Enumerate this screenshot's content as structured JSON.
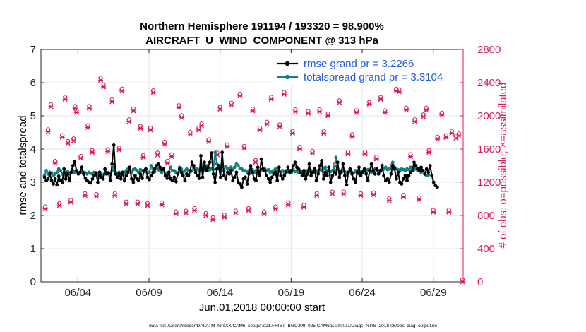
{
  "chart_data": {
    "type": "line",
    "title_line1": "Northern Hemisphere 191194 / 193320 = 98.900%",
    "title_line2": "AIRCRAFT_U_WIND_COMPONENT @ 313 hPa",
    "xlabel": "Jun.01,2018 00:00:00 start",
    "ylabel_left": "rmse and totalspread",
    "ylabel_right": "# of obs: o=possible; ×=assimilated",
    "footnote": "data file: /Users/raeder/DAI/ATM_forcXX/CAM6_setup/f.e21.FHIST_BGC.f09_025.CAM6assim.011/Diags_NTrS_2018-06/obs_diag_output.nc",
    "xlim": [
      1.4,
      31.1
    ],
    "ylim_left": [
      0,
      7
    ],
    "ylim_right": [
      0,
      2800
    ],
    "x_ticks": [
      4,
      9,
      14,
      19,
      24,
      29
    ],
    "x_tick_labels": [
      "06/04",
      "06/09",
      "06/14",
      "06/19",
      "06/24",
      "06/29"
    ],
    "y_ticks_left": [
      "0",
      "1",
      "2",
      "3",
      "4",
      "5",
      "6",
      "7"
    ],
    "y_ticks_right": [
      "0",
      "400",
      "800",
      "1200",
      "1600",
      "2000",
      "2400",
      "2800"
    ],
    "grid": true,
    "legend_position": "top-right",
    "colors": {
      "rmse": "#000000",
      "spread": "#0e8080",
      "obs": "#d81b60",
      "legend_text": "#1f5cd6"
    },
    "series": [
      {
        "name": "rmse grand pr = 3.2266",
        "values": [
          3.15,
          3.05,
          3.1,
          3.25,
          3.05,
          2.95,
          3.1,
          2.92,
          3.18,
          3.05,
          3.0,
          3.4,
          3.1,
          3.25,
          3.05,
          3.3,
          3.5,
          3.62,
          3.35,
          3.25,
          3.3,
          3.45,
          3.25,
          3.12,
          3.05,
          3.0,
          2.98,
          3.1,
          3.2,
          3.28,
          3.0,
          3.3,
          3.15,
          3.1,
          3.4,
          3.25,
          3.28,
          3.05,
          3.55,
          4.12,
          3.25,
          3.15,
          3.25,
          3.1,
          3.3,
          3.05,
          3.2,
          3.3,
          3.45,
          3.1,
          3.0,
          3.2,
          3.1,
          3.05,
          3.25,
          3.12,
          3.35,
          3.4,
          3.15,
          3.08,
          3.2,
          3.3,
          3.4,
          3.5,
          3.55,
          3.45,
          3.38,
          3.4,
          3.2,
          3.12,
          3.3,
          3.1,
          3.05,
          3.15,
          3.02,
          3.25,
          3.4,
          3.3,
          3.2,
          3.05,
          3.25,
          3.2,
          3.35,
          3.6,
          3.5,
          3.3,
          3.2,
          3.12,
          3.8,
          3.15,
          3.6,
          3.35,
          3.45,
          3.6,
          3.88,
          3.25,
          3.0,
          3.4,
          3.5,
          3.15,
          3.9,
          3.2,
          3.1,
          3.3,
          3.25,
          3.35,
          3.05,
          3.15,
          3.3,
          3.0,
          2.95,
          2.85,
          3.1,
          3.15,
          2.95,
          3.25,
          3.5,
          3.3,
          3.1,
          3.05,
          3.45,
          3.2,
          3.7,
          3.4,
          3.35,
          3.2,
          3.1,
          3.0,
          3.15,
          3.25,
          3.3,
          3.05,
          3.45,
          3.2,
          3.1,
          3.2,
          3.3,
          3.45,
          3.3,
          3.35,
          3.5,
          3.6,
          3.45,
          3.4,
          3.3,
          3.2,
          3.35,
          3.1,
          3.25,
          3.55,
          3.2,
          3.3,
          3.4,
          3.05,
          3.25,
          3.5,
          3.65,
          3.1,
          3.3,
          3.2,
          3.45,
          3.0,
          3.2,
          3.3,
          3.25,
          3.6,
          3.15,
          3.3,
          3.55,
          3.2,
          2.92,
          3.3,
          3.4,
          3.25,
          3.1,
          3.0,
          3.3,
          3.45,
          3.2,
          3.3,
          3.4,
          3.25,
          3.05,
          3.35,
          3.55,
          3.35,
          3.25,
          3.4,
          3.25,
          3.35,
          3.5,
          3.2,
          3.05,
          3.1,
          3.0,
          3.25,
          3.5,
          3.4,
          3.1,
          3.3,
          3.0,
          2.95,
          3.1,
          3.2,
          3.05,
          3.2,
          3.3,
          3.35,
          3.6,
          3.5,
          3.4,
          3.35,
          3.45,
          3.35,
          3.25,
          3.4,
          3.3,
          3.5,
          3.2,
          3.0,
          2.9,
          2.85
        ]
      },
      {
        "name": "totalspread grand pr = 3.3104",
        "values": [
          3.2,
          3.35,
          3.25,
          3.3,
          3.28,
          3.2,
          3.25,
          3.3,
          3.4,
          3.35,
          3.25,
          3.3,
          3.3,
          3.32,
          3.25,
          3.28,
          3.35,
          3.3,
          3.32,
          3.28,
          3.3,
          3.32,
          3.3,
          3.28,
          3.25,
          3.3,
          3.27,
          3.25,
          3.3,
          3.25,
          3.22,
          3.28,
          3.25,
          3.2,
          3.25,
          3.3,
          3.28,
          3.25,
          3.35,
          3.45,
          3.3,
          3.25,
          3.3,
          3.22,
          3.28,
          3.3,
          3.35,
          3.4,
          3.35,
          3.3,
          3.38,
          3.4,
          3.35,
          3.3,
          3.38,
          3.35,
          3.32,
          3.4,
          3.28,
          3.3,
          3.5,
          3.42,
          3.32,
          3.45,
          3.38,
          3.35,
          3.3,
          3.4,
          3.25,
          3.28,
          3.3,
          3.45,
          3.35,
          3.35,
          3.3,
          3.25,
          3.45,
          3.4,
          3.3,
          3.35,
          3.4,
          3.35,
          3.3,
          3.35,
          3.45,
          3.35,
          3.4,
          3.35,
          3.35,
          3.42,
          3.38,
          3.5,
          3.35,
          3.38,
          3.4,
          3.38,
          3.9,
          3.55,
          3.42,
          3.45,
          3.55,
          3.35,
          3.48,
          3.4,
          3.42,
          3.45,
          3.38,
          3.45,
          3.55,
          3.5,
          3.42,
          3.4,
          3.35,
          3.35,
          3.3,
          3.35,
          3.32,
          3.38,
          3.3,
          3.35,
          3.3,
          3.32,
          3.38,
          3.35,
          3.4,
          3.35,
          3.38,
          3.3,
          3.32,
          3.35,
          3.4,
          3.38,
          3.35,
          3.3,
          3.35,
          3.3,
          3.35,
          3.32,
          3.35,
          3.3,
          3.38,
          3.32,
          3.35,
          3.3,
          3.35,
          3.32,
          3.35,
          3.3,
          3.35,
          3.32,
          3.35,
          3.3,
          3.38,
          3.35,
          3.3,
          3.38,
          3.35,
          3.4,
          3.45,
          3.35,
          3.35,
          3.32,
          3.35,
          3.38,
          3.75,
          3.4,
          3.35,
          3.3,
          3.35,
          3.32,
          3.28,
          3.3,
          3.35,
          3.3,
          3.28,
          3.35,
          3.3,
          3.25,
          3.3,
          3.32,
          3.35,
          3.3,
          3.38,
          3.35,
          3.3,
          3.35,
          3.4,
          3.38,
          3.35,
          3.32,
          3.38,
          3.4,
          3.45,
          3.38,
          3.4,
          3.42,
          3.6,
          3.45,
          3.4,
          3.38,
          3.35,
          3.4,
          3.38,
          3.35,
          3.4,
          3.38,
          3.45,
          3.4,
          3.38,
          3.42,
          3.35,
          3.4,
          3.3,
          3.35,
          3.25,
          3.2,
          3.22
        ]
      }
    ],
    "obs_points": [
      [
        1.7,
        880
      ],
      [
        1.9,
        1810
      ],
      [
        2.1,
        2110
      ],
      [
        2.4,
        1430
      ],
      [
        2.7,
        920
      ],
      [
        2.9,
        1740
      ],
      [
        3.1,
        2200
      ],
      [
        3.3,
        1670
      ],
      [
        3.5,
        960
      ],
      [
        3.7,
        1700
      ],
      [
        3.8,
        2090
      ],
      [
        3.9,
        2040
      ],
      [
        4.2,
        1490
      ],
      [
        4.5,
        1040
      ],
      [
        4.7,
        1860
      ],
      [
        4.8,
        2090
      ],
      [
        5.0,
        1560
      ],
      [
        5.3,
        1030
      ],
      [
        5.6,
        2430
      ],
      [
        5.8,
        2350
      ],
      [
        6.1,
        1570
      ],
      [
        6.4,
        2170
      ],
      [
        6.6,
        1040
      ],
      [
        6.9,
        1590
      ],
      [
        7.1,
        2300
      ],
      [
        7.4,
        940
      ],
      [
        7.6,
        1930
      ],
      [
        7.9,
        2060
      ],
      [
        8.2,
        940
      ],
      [
        8.4,
        1850
      ],
      [
        8.6,
        1500
      ],
      [
        8.9,
        920
      ],
      [
        9.1,
        1830
      ],
      [
        9.3,
        2280
      ],
      [
        9.6,
        1530
      ],
      [
        9.9,
        930
      ],
      [
        10.1,
        1660
      ],
      [
        10.3,
        1430
      ],
      [
        10.6,
        1510
      ],
      [
        10.9,
        820
      ],
      [
        11.1,
        2100
      ],
      [
        11.3,
        1980
      ],
      [
        11.6,
        830
      ],
      [
        11.9,
        1780
      ],
      [
        12.2,
        860
      ],
      [
        12.5,
        1830
      ],
      [
        12.7,
        1880
      ],
      [
        13.0,
        800
      ],
      [
        13.2,
        1690
      ],
      [
        13.5,
        750
      ],
      [
        13.8,
        1530
      ],
      [
        14.0,
        2080
      ],
      [
        14.3,
        780
      ],
      [
        14.5,
        1630
      ],
      [
        14.8,
        2130
      ],
      [
        15.1,
        830
      ],
      [
        15.4,
        2240
      ],
      [
        15.7,
        1610
      ],
      [
        16.0,
        860
      ],
      [
        16.3,
        2060
      ],
      [
        16.5,
        1440
      ],
      [
        16.8,
        1830
      ],
      [
        17.1,
        820
      ],
      [
        17.3,
        1900
      ],
      [
        17.6,
        2200
      ],
      [
        17.9,
        880
      ],
      [
        18.2,
        1870
      ],
      [
        18.5,
        2260
      ],
      [
        18.8,
        930
      ],
      [
        19.1,
        1790
      ],
      [
        19.3,
        2050
      ],
      [
        19.6,
        1600
      ],
      [
        19.9,
        900
      ],
      [
        20.2,
        2030
      ],
      [
        20.5,
        1550
      ],
      [
        20.8,
        1040
      ],
      [
        21.0,
        2050
      ],
      [
        21.3,
        1790
      ],
      [
        21.6,
        2000
      ],
      [
        21.9,
        1060
      ],
      [
        22.1,
        1390
      ],
      [
        22.4,
        2160
      ],
      [
        22.7,
        1060
      ],
      [
        23.0,
        1540
      ],
      [
        23.3,
        1750
      ],
      [
        23.6,
        2040
      ],
      [
        23.9,
        1040
      ],
      [
        24.2,
        1540
      ],
      [
        24.5,
        2140
      ],
      [
        24.8,
        1050
      ],
      [
        25.0,
        1480
      ],
      [
        25.3,
        2200
      ],
      [
        25.6,
        2040
      ],
      [
        25.9,
        980
      ],
      [
        26.1,
        1380
      ],
      [
        26.4,
        2300
      ],
      [
        26.6,
        2290
      ],
      [
        26.9,
        1020
      ],
      [
        27.1,
        2070
      ],
      [
        27.4,
        1510
      ],
      [
        27.7,
        1930
      ],
      [
        28.0,
        990
      ],
      [
        28.3,
        1990
      ],
      [
        28.5,
        2070
      ],
      [
        28.7,
        1560
      ],
      [
        29.0,
        840
      ],
      [
        29.3,
        1720
      ],
      [
        29.6,
        2010
      ],
      [
        29.9,
        1740
      ],
      [
        30.1,
        840
      ],
      [
        30.3,
        1790
      ],
      [
        30.6,
        1730
      ],
      [
        30.8,
        1760
      ],
      [
        31.05,
        0
      ]
    ]
  }
}
